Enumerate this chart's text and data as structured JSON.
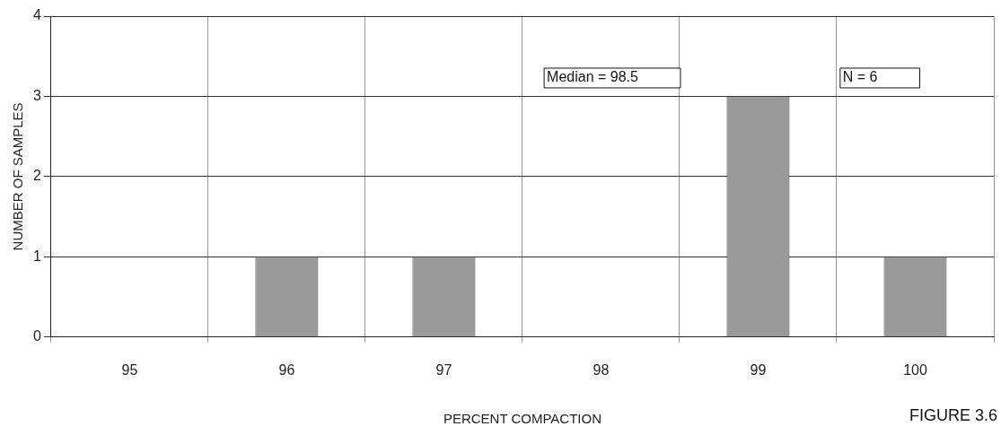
{
  "chart_data": {
    "type": "bar",
    "xlabel": "PERCENT COMPACTION",
    "ylabel": "NUMBER OF SAMPLES",
    "categories": [
      "95",
      "96",
      "97",
      "98",
      "99",
      "100"
    ],
    "values": [
      0,
      1,
      1,
      0,
      3,
      1
    ],
    "color": "#9a9a9a",
    "ylim": [
      0,
      4
    ],
    "yticks": [
      0,
      1,
      2,
      3,
      4
    ],
    "grid": true,
    "legend": false,
    "annotations": [
      "Median = 98.5",
      "N = 6",
      "FIGURE 3.6"
    ]
  }
}
